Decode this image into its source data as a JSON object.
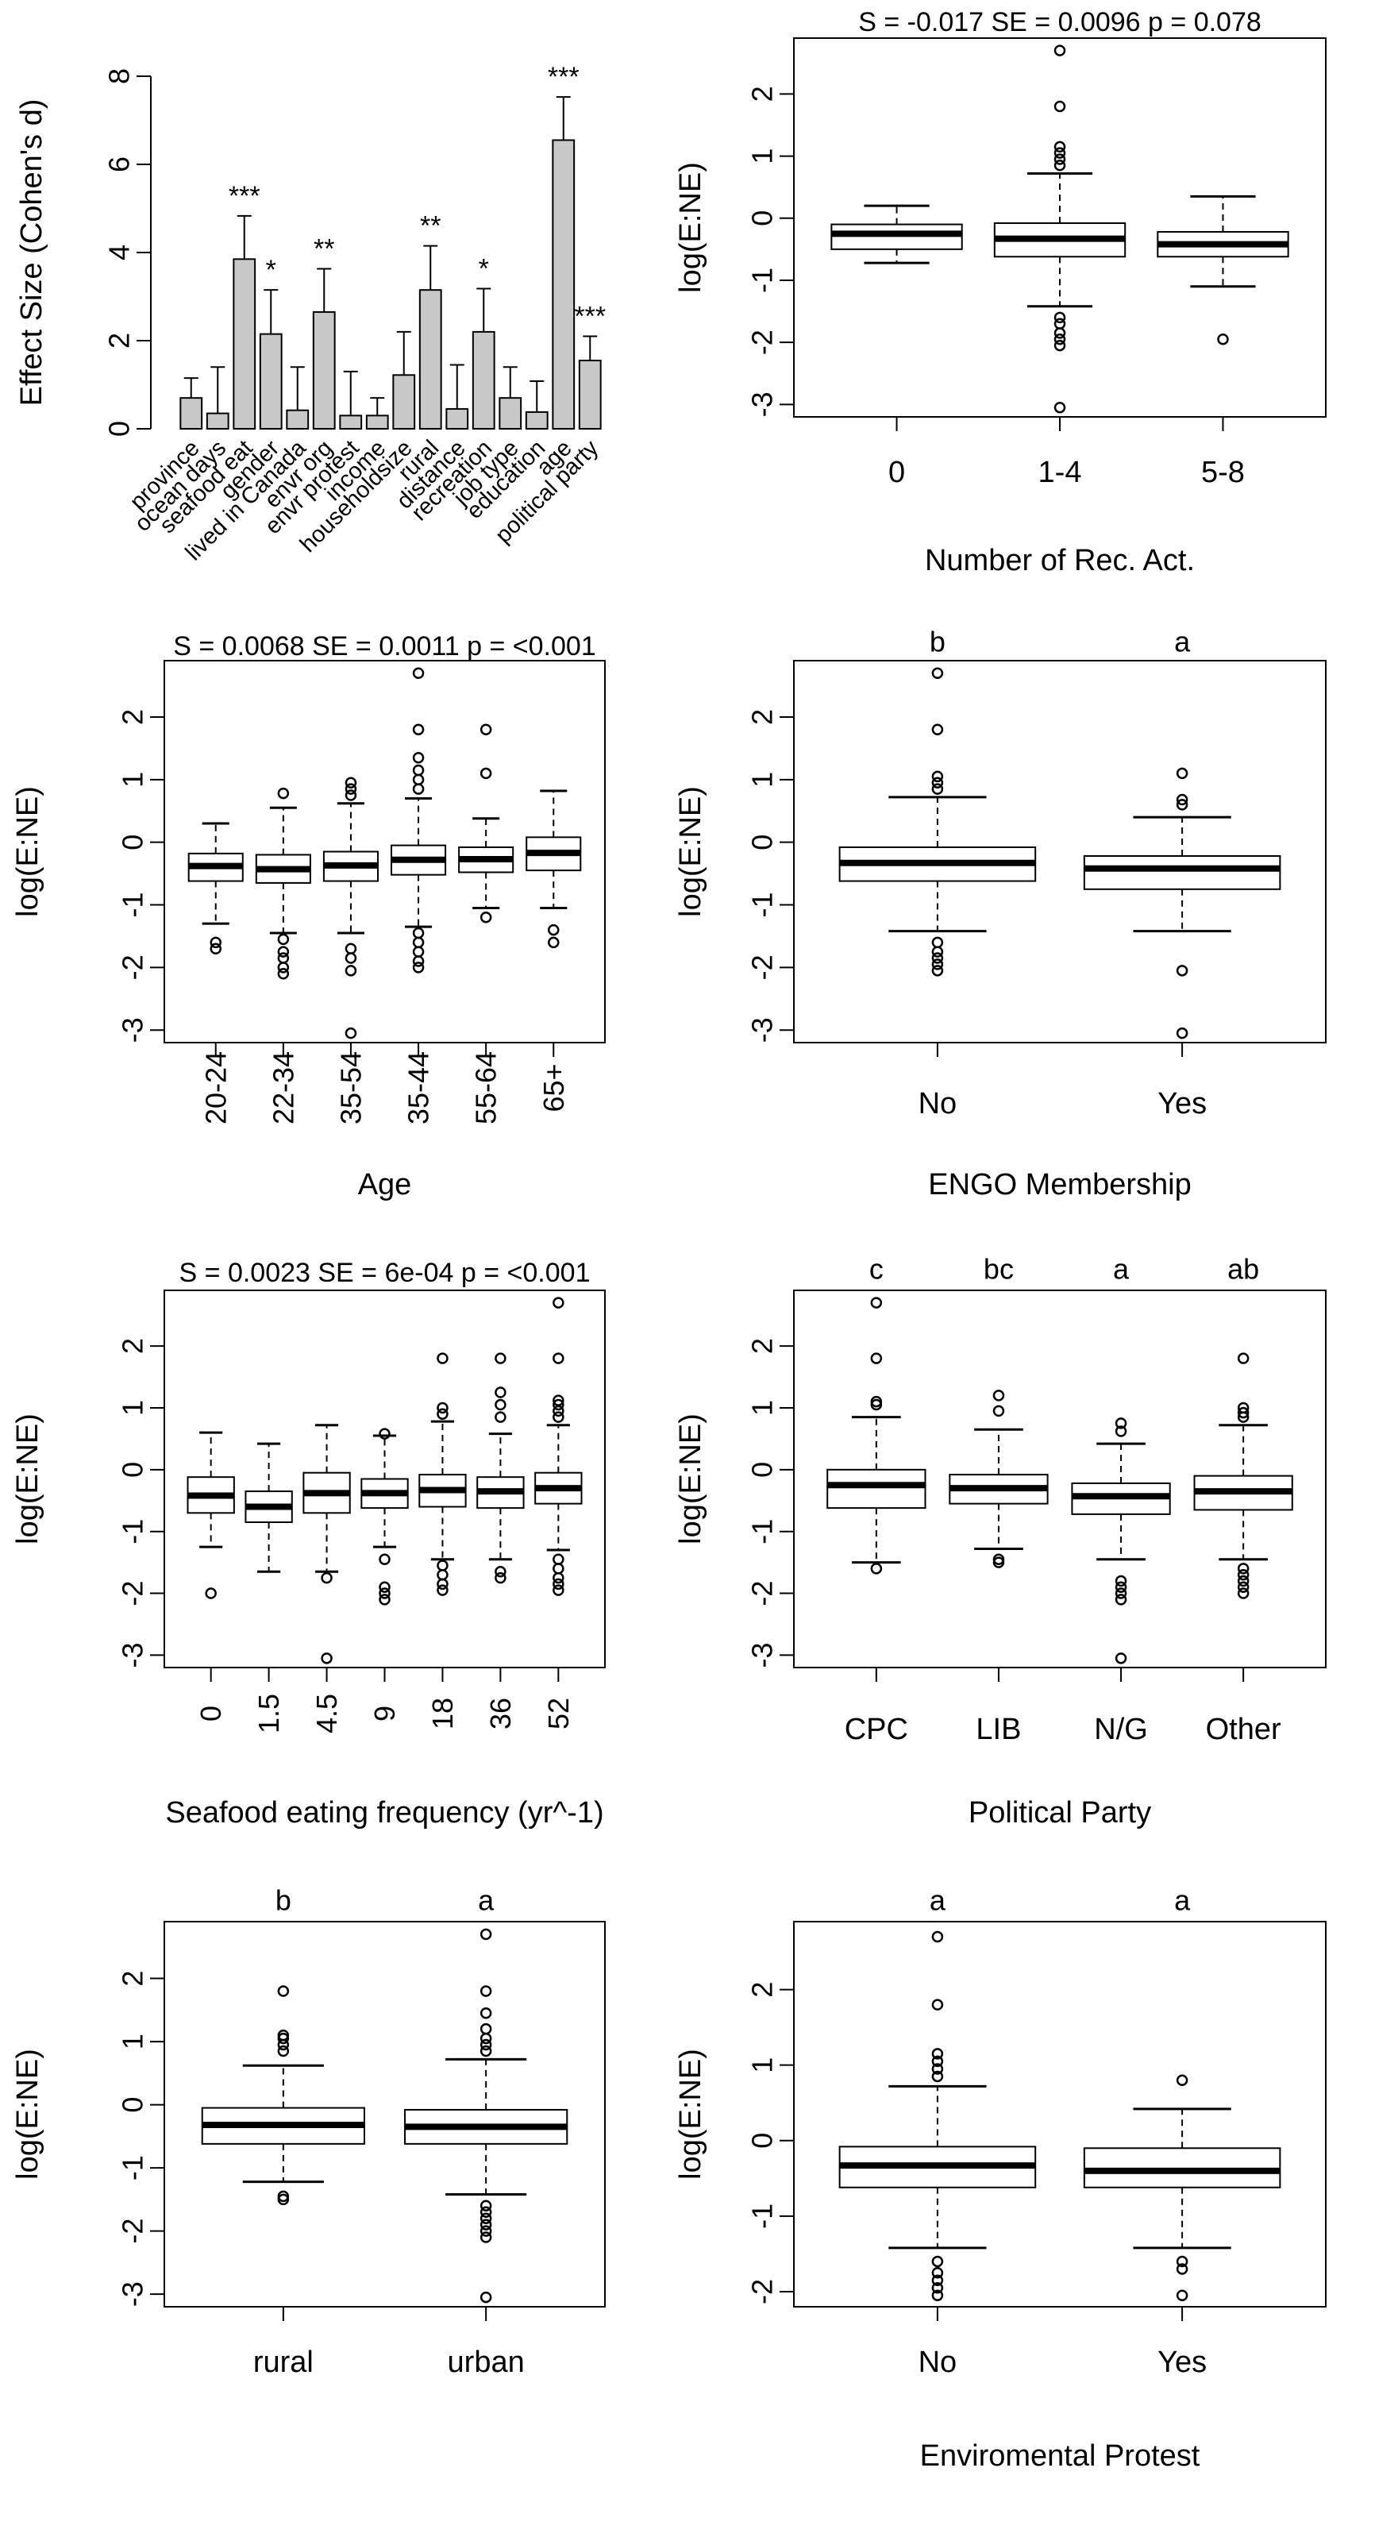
{
  "chart_data": [
    {
      "type": "bar",
      "ylabel": "Effect Size (Cohen's d)",
      "ylim": [
        0,
        8
      ],
      "yticks": [
        "0",
        "2",
        "4",
        "6",
        "8"
      ],
      "bar_color": "#c8c8c8",
      "categories": [
        "province",
        "ocean days",
        "seafood eat",
        "gender",
        "lived in Canada",
        "envr org",
        "envr protest",
        "income",
        "householdsize",
        "rural",
        "distance",
        "recreation",
        "job type",
        "education",
        "age",
        "political party"
      ],
      "values": [
        0.7,
        0.35,
        3.85,
        2.15,
        0.42,
        2.65,
        0.3,
        0.3,
        1.22,
        3.15,
        0.45,
        2.2,
        0.7,
        0.38,
        6.55,
        1.55
      ],
      "errors": [
        0.45,
        1.05,
        0.98,
        1.0,
        0.98,
        0.98,
        1.0,
        0.4,
        0.98,
        1.0,
        1.0,
        0.98,
        0.7,
        0.7,
        0.98,
        0.55
      ],
      "significance": [
        "",
        "",
        "***",
        "*",
        "",
        "**",
        "",
        "",
        "",
        "**",
        "",
        "*",
        "",
        "",
        "***",
        "***"
      ]
    },
    {
      "type": "boxplot",
      "title": "S =  -0.017 SE = 0.0096 p = 0.078",
      "xlabel": "Number of Rec. Act.",
      "ylabel": "log(E:NE)",
      "ylim": [
        -3.2,
        2.9
      ],
      "yticks": [
        "2",
        "1",
        "0",
        "-1",
        "-2",
        "-3"
      ],
      "categories": [
        "0",
        "1-4",
        "5-8"
      ],
      "boxes": [
        {
          "q1": -0.5,
          "median": -0.25,
          "q3": -0.1,
          "whisker_low": -0.72,
          "whisker_high": 0.2,
          "outliers": []
        },
        {
          "q1": -0.62,
          "median": -0.33,
          "q3": -0.08,
          "whisker_low": -1.42,
          "whisker_high": 0.72,
          "outliers": [
            -3.05,
            -2.05,
            -1.95,
            -1.85,
            -1.7,
            -1.6,
            0.85,
            0.95,
            1.05,
            1.15,
            1.8,
            2.7
          ]
        },
        {
          "q1": -0.62,
          "median": -0.42,
          "q3": -0.22,
          "whisker_low": -1.1,
          "whisker_high": 0.35,
          "outliers": [
            -1.95
          ]
        }
      ]
    },
    {
      "type": "boxplot",
      "title": "S =  0.0068 SE = 0.0011 p = <0.001",
      "xlabel": "Age",
      "ylabel": "log(E:NE)",
      "ylim": [
        -3.2,
        2.9
      ],
      "yticks": [
        "2",
        "1",
        "0",
        "-1",
        "-2",
        "-3"
      ],
      "categories": [
        "20-24",
        "22-34",
        "35-54",
        "35-44",
        "55-64",
        "65+"
      ],
      "boxes": [
        {
          "q1": -0.62,
          "median": -0.38,
          "q3": -0.18,
          "whisker_low": -1.3,
          "whisker_high": 0.3,
          "outliers": [
            -1.7,
            -1.6
          ]
        },
        {
          "q1": -0.65,
          "median": -0.43,
          "q3": -0.2,
          "whisker_low": -1.45,
          "whisker_high": 0.55,
          "outliers": [
            -2.1,
            -2.0,
            -1.85,
            -1.75,
            -1.55,
            0.78
          ]
        },
        {
          "q1": -0.62,
          "median": -0.37,
          "q3": -0.15,
          "whisker_low": -1.45,
          "whisker_high": 0.62,
          "outliers": [
            -3.05,
            -2.05,
            -1.85,
            -1.7,
            0.75,
            0.85,
            0.95
          ]
        },
        {
          "q1": -0.52,
          "median": -0.28,
          "q3": -0.05,
          "whisker_low": -1.35,
          "whisker_high": 0.7,
          "outliers": [
            -2.0,
            -1.9,
            -1.75,
            -1.6,
            -1.45,
            0.85,
            1.0,
            1.15,
            1.35,
            1.8,
            2.7
          ]
        },
        {
          "q1": -0.48,
          "median": -0.27,
          "q3": -0.08,
          "whisker_low": -1.05,
          "whisker_high": 0.38,
          "outliers": [
            -1.2,
            1.1,
            1.8
          ]
        },
        {
          "q1": -0.45,
          "median": -0.17,
          "q3": 0.08,
          "whisker_low": -1.05,
          "whisker_high": 0.82,
          "outliers": [
            -1.6,
            -1.4
          ]
        }
      ]
    },
    {
      "type": "boxplot",
      "xlabel": "ENGO Membership",
      "ylabel": "log(E:NE)",
      "ylim": [
        -3.2,
        2.9
      ],
      "yticks": [
        "2",
        "1",
        "0",
        "-1",
        "-2",
        "-3"
      ],
      "categories": [
        "No",
        "Yes"
      ],
      "letters": [
        "b",
        "a"
      ],
      "boxes": [
        {
          "q1": -0.62,
          "median": -0.33,
          "q3": -0.08,
          "whisker_low": -1.42,
          "whisker_high": 0.72,
          "outliers": [
            -2.05,
            -1.95,
            -1.85,
            -1.75,
            -1.6,
            0.85,
            0.95,
            1.05,
            1.8,
            2.7
          ]
        },
        {
          "q1": -0.75,
          "median": -0.42,
          "q3": -0.22,
          "whisker_low": -1.42,
          "whisker_high": 0.4,
          "outliers": [
            -3.05,
            -2.05,
            0.6,
            0.68,
            1.1
          ]
        }
      ]
    },
    {
      "type": "boxplot",
      "title": "S =  0.0023 SE = 6e-04 p = <0.001",
      "xlabel": "Seafood eating frequency (yr^-1)",
      "ylabel": "log(E:NE)",
      "ylim": [
        -3.2,
        2.9
      ],
      "yticks": [
        "2",
        "1",
        "0",
        "-1",
        "-2",
        "-3"
      ],
      "categories": [
        "0",
        "1.5",
        "4.5",
        "9",
        "18",
        "36",
        "52"
      ],
      "boxes": [
        {
          "q1": -0.7,
          "median": -0.42,
          "q3": -0.12,
          "whisker_low": -1.25,
          "whisker_high": 0.6,
          "outliers": [
            -2.0
          ]
        },
        {
          "q1": -0.85,
          "median": -0.6,
          "q3": -0.35,
          "whisker_low": -1.65,
          "whisker_high": 0.42,
          "outliers": []
        },
        {
          "q1": -0.7,
          "median": -0.38,
          "q3": -0.05,
          "whisker_low": -1.65,
          "whisker_high": 0.72,
          "outliers": [
            -3.05,
            -1.75
          ]
        },
        {
          "q1": -0.62,
          "median": -0.38,
          "q3": -0.15,
          "whisker_low": -1.25,
          "whisker_high": 0.55,
          "outliers": [
            -2.1,
            -2.0,
            -1.9,
            -1.45,
            0.58
          ]
        },
        {
          "q1": -0.6,
          "median": -0.33,
          "q3": -0.08,
          "whisker_low": -1.45,
          "whisker_high": 0.78,
          "outliers": [
            -1.95,
            -1.85,
            -1.7,
            -1.55,
            0.9,
            1.0,
            1.8
          ]
        },
        {
          "q1": -0.62,
          "median": -0.35,
          "q3": -0.12,
          "whisker_low": -1.45,
          "whisker_high": 0.58,
          "outliers": [
            -1.75,
            -1.65,
            0.85,
            1.05,
            1.25,
            1.8
          ]
        },
        {
          "q1": -0.55,
          "median": -0.3,
          "q3": -0.05,
          "whisker_low": -1.3,
          "whisker_high": 0.72,
          "outliers": [
            -1.95,
            -1.85,
            -1.75,
            -1.6,
            -1.45,
            0.85,
            0.95,
            1.05,
            1.12,
            1.8,
            2.7
          ]
        }
      ]
    },
    {
      "type": "boxplot",
      "xlabel": "Political Party",
      "ylabel": "log(E:NE)",
      "ylim": [
        -3.2,
        2.9
      ],
      "yticks": [
        "2",
        "1",
        "0",
        "-1",
        "-2",
        "-3"
      ],
      "categories": [
        "CPC",
        "LIB",
        "N/G",
        "Other"
      ],
      "letters": [
        "c",
        "bc",
        "a",
        "ab"
      ],
      "boxes": [
        {
          "q1": -0.62,
          "median": -0.25,
          "q3": -0.0,
          "whisker_low": -1.5,
          "whisker_high": 0.85,
          "outliers": [
            -1.6,
            1.05,
            1.1,
            1.8,
            2.7
          ]
        },
        {
          "q1": -0.55,
          "median": -0.3,
          "q3": -0.08,
          "whisker_low": -1.28,
          "whisker_high": 0.65,
          "outliers": [
            -1.5,
            -1.45,
            0.95,
            1.2
          ]
        },
        {
          "q1": -0.72,
          "median": -0.43,
          "q3": -0.22,
          "whisker_low": -1.45,
          "whisker_high": 0.42,
          "outliers": [
            -3.05,
            -2.1,
            -2.0,
            -1.9,
            -1.8,
            0.62,
            0.75
          ]
        },
        {
          "q1": -0.65,
          "median": -0.35,
          "q3": -0.1,
          "whisker_low": -1.45,
          "whisker_high": 0.72,
          "outliers": [
            -2.0,
            -1.9,
            -1.8,
            -1.7,
            -1.6,
            0.85,
            0.92,
            1.0,
            1.8
          ]
        }
      ]
    },
    {
      "type": "boxplot",
      "ylabel": "log(E:NE)",
      "ylim": [
        -3.2,
        2.9
      ],
      "yticks": [
        "2",
        "1",
        "0",
        "-1",
        "-2",
        "-3"
      ],
      "categories": [
        "rural",
        "urban"
      ],
      "letters": [
        "b",
        "a"
      ],
      "boxes": [
        {
          "q1": -0.62,
          "median": -0.32,
          "q3": -0.05,
          "whisker_low": -1.22,
          "whisker_high": 0.62,
          "outliers": [
            -1.5,
            -1.45,
            0.85,
            0.95,
            1.05,
            1.1,
            1.8
          ]
        },
        {
          "q1": -0.62,
          "median": -0.35,
          "q3": -0.08,
          "whisker_low": -1.42,
          "whisker_high": 0.72,
          "outliers": [
            -3.05,
            -2.1,
            -2.0,
            -1.9,
            -1.8,
            -1.7,
            -1.6,
            0.85,
            0.95,
            1.05,
            1.2,
            1.45,
            1.8,
            2.7
          ]
        }
      ]
    },
    {
      "type": "boxplot",
      "xlabel": "Enviromental Protest",
      "ylabel": "log(E:NE)",
      "ylim": [
        -2.2,
        2.9
      ],
      "yticks": [
        "2",
        "1",
        "0",
        "-1",
        "-2"
      ],
      "categories": [
        "No",
        "Yes"
      ],
      "letters": [
        "a",
        "a"
      ],
      "boxes": [
        {
          "q1": -0.62,
          "median": -0.33,
          "q3": -0.08,
          "whisker_low": -1.42,
          "whisker_high": 0.72,
          "outliers": [
            -2.05,
            -1.95,
            -1.85,
            -1.75,
            -1.6,
            0.85,
            0.95,
            1.05,
            1.15,
            1.8,
            2.7
          ]
        },
        {
          "q1": -0.62,
          "median": -0.4,
          "q3": -0.1,
          "whisker_low": -1.42,
          "whisker_high": 0.42,
          "outliers": [
            -2.05,
            -1.7,
            -1.6,
            0.8
          ]
        }
      ]
    }
  ]
}
